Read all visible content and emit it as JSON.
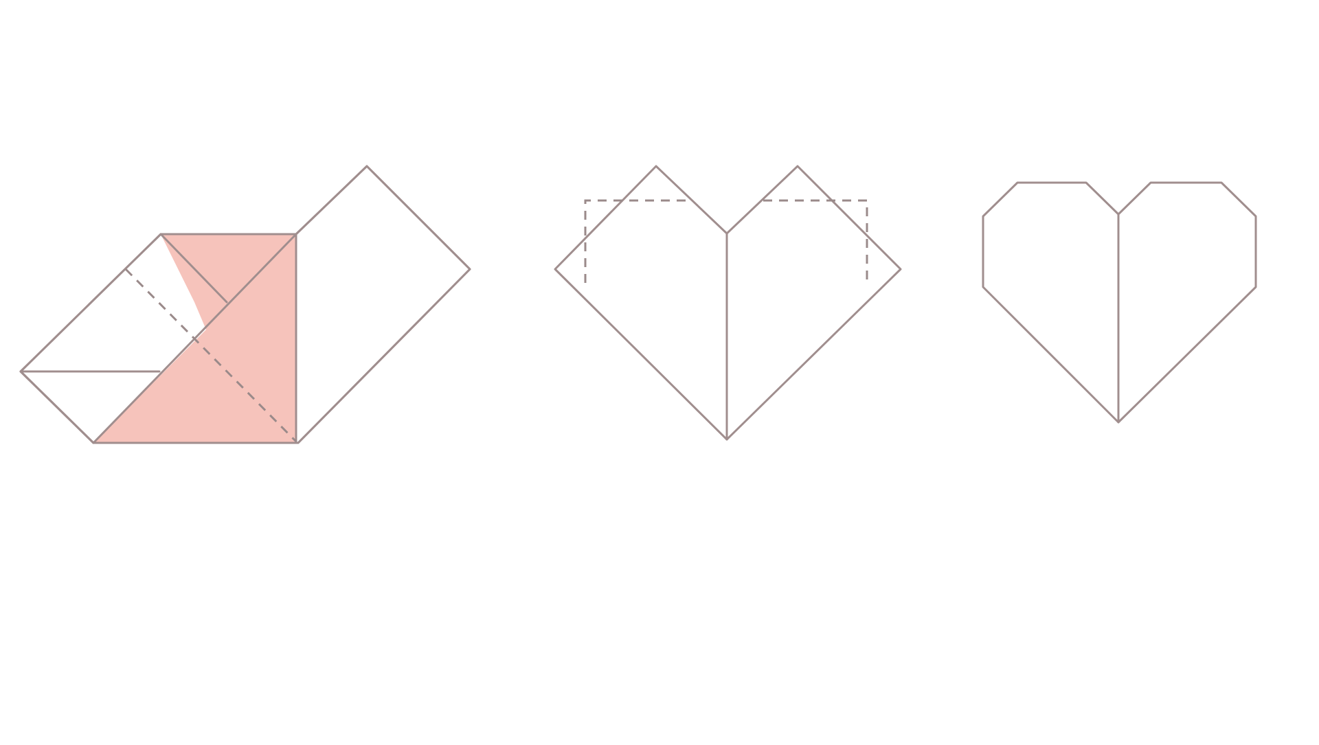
{
  "diagram": {
    "kind": "origami-heart-folding-steps",
    "step_count": 3,
    "colors": {
      "background": "#ffffff",
      "paper_front": "#f0aaa6",
      "paper_mid": "#f6c3bb",
      "paper_back": "#ffffff",
      "edge_line": "#a08e8e",
      "crease_line": "#9a8a8a"
    },
    "steps": [
      {
        "step": 1,
        "fold_lines": "dashed",
        "state": "partially-folded"
      },
      {
        "step": 2,
        "fold_lines": "dashed",
        "state": "heart-with-corner-folds-marked"
      },
      {
        "step": 3,
        "fold_lines": "none",
        "state": "finished-heart"
      }
    ]
  }
}
